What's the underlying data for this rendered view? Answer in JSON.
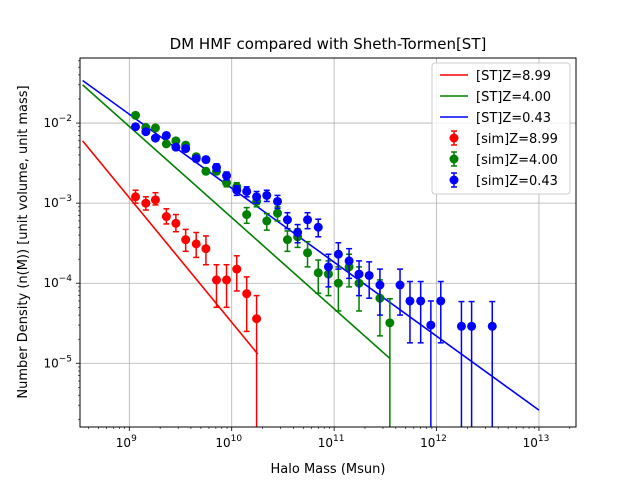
{
  "chart_data": {
    "type": "scatter",
    "title": "DM HMF compared with Sheth-Tormen[ST]",
    "xlabel": "Halo Mass (Msun)",
    "ylabel": "Number Density (n(M)) [unit volume, unit mass]",
    "xscale": "log",
    "yscale": "log",
    "xlim": [
      330000000.0,
      23000000000000.0
    ],
    "ylim": [
      1.6e-06,
      0.065
    ],
    "x_major_ticks": [
      {
        "value": 1000000000.0,
        "base": "10",
        "exp": "9"
      },
      {
        "value": 10000000000.0,
        "base": "10",
        "exp": "10"
      },
      {
        "value": 100000000000.0,
        "base": "10",
        "exp": "11"
      },
      {
        "value": 1000000000000.0,
        "base": "10",
        "exp": "12"
      },
      {
        "value": 10000000000000.0,
        "base": "10",
        "exp": "13"
      }
    ],
    "y_major_ticks": [
      {
        "value": 1e-05,
        "base": "10",
        "exp": "−5"
      },
      {
        "value": 0.0001,
        "base": "10",
        "exp": "−4"
      },
      {
        "value": 0.001,
        "base": "10",
        "exp": "−3"
      },
      {
        "value": 0.01,
        "base": "10",
        "exp": "−2"
      }
    ],
    "grid": true,
    "legend_position": "top-right",
    "lines": [
      {
        "name": "[ST]Z=8.99",
        "color": "#ff0000",
        "x": [
          350000000.0,
          18000000000.0
        ],
        "y": [
          0.006,
          1.3e-05
        ]
      },
      {
        "name": "[ST]Z=4.00",
        "color": "#008000",
        "x": [
          350000000.0,
          350000000000.0
        ],
        "y": [
          0.03,
          1.15e-05
        ]
      },
      {
        "name": "[ST]Z=0.43",
        "color": "#0000ff",
        "x": [
          350000000.0,
          10000000000000.0
        ],
        "y": [
          0.034,
          2.6e-06
        ]
      }
    ],
    "series": [
      {
        "name": "[sim]Z=8.99",
        "color": "#ff0000",
        "points": [
          {
            "x": 1150000000.0,
            "y": 0.0012,
            "lo": 0.001,
            "hi": 0.00145
          },
          {
            "x": 1450000000.0,
            "y": 0.001,
            "lo": 0.00082,
            "hi": 0.0012
          },
          {
            "x": 1800000000.0,
            "y": 0.0011,
            "lo": 0.00095,
            "hi": 0.00135
          },
          {
            "x": 2300000000.0,
            "y": 0.00068,
            "lo": 0.00055,
            "hi": 0.00085
          },
          {
            "x": 2850000000.0,
            "y": 0.00056,
            "lo": 0.00044,
            "hi": 0.00072
          },
          {
            "x": 3550000000.0,
            "y": 0.00035,
            "lo": 0.00025,
            "hi": 0.00047
          },
          {
            "x": 4500000000.0,
            "y": 0.00031,
            "lo": 0.00021,
            "hi": 0.00043
          },
          {
            "x": 5600000000.0,
            "y": 0.00027,
            "lo": 0.00017,
            "hi": 0.00039
          },
          {
            "x": 7100000000.0,
            "y": 0.00011,
            "lo": 5e-05,
            "hi": 0.00017
          },
          {
            "x": 8900000000.0,
            "y": 0.00011,
            "lo": 5e-05,
            "hi": 0.00017
          },
          {
            "x": 11200000000.0,
            "y": 0.00015,
            "lo": 8e-05,
            "hi": 0.00022
          },
          {
            "x": 14000000000.0,
            "y": 7.4e-05,
            "lo": 2.5e-05,
            "hi": 0.00012
          },
          {
            "x": 17500000000.0,
            "y": 3.6e-05,
            "lo": 1e-06,
            "hi": 7e-05
          }
        ]
      },
      {
        "name": "[sim]Z=4.00",
        "color": "#008000",
        "points": [
          {
            "x": 1150000000.0,
            "y": 0.0125,
            "lo": 0.0118,
            "hi": 0.0132
          },
          {
            "x": 1450000000.0,
            "y": 0.0088,
            "lo": 0.0083,
            "hi": 0.0093
          },
          {
            "x": 1800000000.0,
            "y": 0.0087,
            "lo": 0.0082,
            "hi": 0.0092
          },
          {
            "x": 2300000000.0,
            "y": 0.0055,
            "lo": 0.0051,
            "hi": 0.0059
          },
          {
            "x": 2850000000.0,
            "y": 0.006,
            "lo": 0.0056,
            "hi": 0.0064
          },
          {
            "x": 3550000000.0,
            "y": 0.0053,
            "lo": 0.0049,
            "hi": 0.0057
          },
          {
            "x": 4500000000.0,
            "y": 0.0038,
            "lo": 0.0035,
            "hi": 0.0041
          },
          {
            "x": 5600000000.0,
            "y": 0.0025,
            "lo": 0.0023,
            "hi": 0.0027
          },
          {
            "x": 7100000000.0,
            "y": 0.0025,
            "lo": 0.0023,
            "hi": 0.0027
          },
          {
            "x": 8900000000.0,
            "y": 0.0018,
            "lo": 0.0016,
            "hi": 0.002
          },
          {
            "x": 11200000000.0,
            "y": 0.0016,
            "lo": 0.0014,
            "hi": 0.0018
          },
          {
            "x": 14000000000.0,
            "y": 0.00072,
            "lo": 0.00056,
            "hi": 0.00088
          },
          {
            "x": 17500000000.0,
            "y": 0.00105,
            "lo": 0.0009,
            "hi": 0.0012
          },
          {
            "x": 22000000000.0,
            "y": 0.0006,
            "lo": 0.00046,
            "hi": 0.00074
          },
          {
            "x": 28000000000.0,
            "y": 0.00075,
            "lo": 0.0006,
            "hi": 0.0009
          },
          {
            "x": 35000000000.0,
            "y": 0.00035,
            "lo": 0.00025,
            "hi": 0.00045
          },
          {
            "x": 44000000000.0,
            "y": 0.00038,
            "lo": 0.00028,
            "hi": 0.00048
          },
          {
            "x": 55000000000.0,
            "y": 0.00024,
            "lo": 0.00016,
            "hi": 0.00033
          },
          {
            "x": 70000000000.0,
            "y": 0.000135,
            "lo": 7.5e-05,
            "hi": 0.000195
          },
          {
            "x": 88000000000.0,
            "y": 0.00013,
            "lo": 7e-05,
            "hi": 0.00019
          },
          {
            "x": 110000000000.0,
            "y": 0.0001,
            "lo": 4.5e-05,
            "hi": 0.00016
          },
          {
            "x": 140000000000.0,
            "y": 0.00016,
            "lo": 9e-05,
            "hi": 0.00023
          },
          {
            "x": 175000000000.0,
            "y": 0.0001,
            "lo": 4.5e-05,
            "hi": 0.00016
          },
          {
            "x": 280000000000.0,
            "y": 6.5e-05,
            "lo": 2.2e-05,
            "hi": 0.00011
          },
          {
            "x": 350000000000.0,
            "y": 3.2e-05,
            "lo": 1e-06,
            "hi": 6.4e-05
          }
        ]
      },
      {
        "name": "[sim]Z=0.43",
        "color": "#0000ff",
        "points": [
          {
            "x": 1150000000.0,
            "y": 0.009,
            "lo": 0.0086,
            "hi": 0.0094
          },
          {
            "x": 1450000000.0,
            "y": 0.0078,
            "lo": 0.0074,
            "hi": 0.0082
          },
          {
            "x": 1800000000.0,
            "y": 0.0065,
            "lo": 0.0061,
            "hi": 0.0069
          },
          {
            "x": 2300000000.0,
            "y": 0.007,
            "lo": 0.0066,
            "hi": 0.0074
          },
          {
            "x": 2850000000.0,
            "y": 0.005,
            "lo": 0.0047,
            "hi": 0.0053
          },
          {
            "x": 3550000000.0,
            "y": 0.0048,
            "lo": 0.0045,
            "hi": 0.0051
          },
          {
            "x": 4500000000.0,
            "y": 0.0036,
            "lo": 0.0033,
            "hi": 0.0039
          },
          {
            "x": 5600000000.0,
            "y": 0.0035,
            "lo": 0.0032,
            "hi": 0.0038
          },
          {
            "x": 7100000000.0,
            "y": 0.0028,
            "lo": 0.0025,
            "hi": 0.0031
          },
          {
            "x": 8900000000.0,
            "y": 0.0022,
            "lo": 0.00195,
            "hi": 0.00245
          },
          {
            "x": 11200000000.0,
            "y": 0.00145,
            "lo": 0.00125,
            "hi": 0.00165
          },
          {
            "x": 14000000000.0,
            "y": 0.0014,
            "lo": 0.0012,
            "hi": 0.0016
          },
          {
            "x": 17500000000.0,
            "y": 0.0012,
            "lo": 0.001,
            "hi": 0.0014
          },
          {
            "x": 22000000000.0,
            "y": 0.00125,
            "lo": 0.00105,
            "hi": 0.00145
          },
          {
            "x": 28000000000.0,
            "y": 0.00105,
            "lo": 0.00086,
            "hi": 0.00125
          },
          {
            "x": 35000000000.0,
            "y": 0.00062,
            "lo": 0.00048,
            "hi": 0.00076
          },
          {
            "x": 44000000000.0,
            "y": 0.00043,
            "lo": 0.00032,
            "hi": 0.00054
          },
          {
            "x": 55000000000.0,
            "y": 0.00062,
            "lo": 0.00048,
            "hi": 0.00076
          },
          {
            "x": 70000000000.0,
            "y": 0.0005,
            "lo": 0.00038,
            "hi": 0.00063
          },
          {
            "x": 88000000000.0,
            "y": 0.00016,
            "lo": 9e-05,
            "hi": 0.00023
          },
          {
            "x": 110000000000.0,
            "y": 0.00023,
            "lo": 0.00015,
            "hi": 0.00032
          },
          {
            "x": 140000000000.0,
            "y": 0.00019,
            "lo": 0.000115,
            "hi": 0.00027
          },
          {
            "x": 175000000000.0,
            "y": 0.00013,
            "lo": 7e-05,
            "hi": 0.00019
          },
          {
            "x": 220000000000.0,
            "y": 0.000125,
            "lo": 6.5e-05,
            "hi": 0.000185
          },
          {
            "x": 280000000000.0,
            "y": 9.5e-05,
            "lo": 4e-05,
            "hi": 0.00015
          },
          {
            "x": 440000000000.0,
            "y": 9.5e-05,
            "lo": 4e-05,
            "hi": 0.00015
          },
          {
            "x": 550000000000.0,
            "y": 6e-05,
            "lo": 1.8e-05,
            "hi": 0.000105
          },
          {
            "x": 700000000000.0,
            "y": 6e-05,
            "lo": 1.8e-05,
            "hi": 0.000105
          },
          {
            "x": 880000000000.0,
            "y": 3e-05,
            "lo": 1e-06,
            "hi": 6e-05
          },
          {
            "x": 1100000000000.0,
            "y": 6e-05,
            "lo": 1.8e-05,
            "hi": 0.000105
          },
          {
            "x": 1750000000000.0,
            "y": 2.9e-05,
            "lo": 1e-06,
            "hi": 5.9e-05
          },
          {
            "x": 2200000000000.0,
            "y": 2.9e-05,
            "lo": 1e-06,
            "hi": 5.9e-05
          },
          {
            "x": 3500000000000.0,
            "y": 2.9e-05,
            "lo": 1e-06,
            "hi": 5.9e-05
          }
        ]
      }
    ]
  }
}
